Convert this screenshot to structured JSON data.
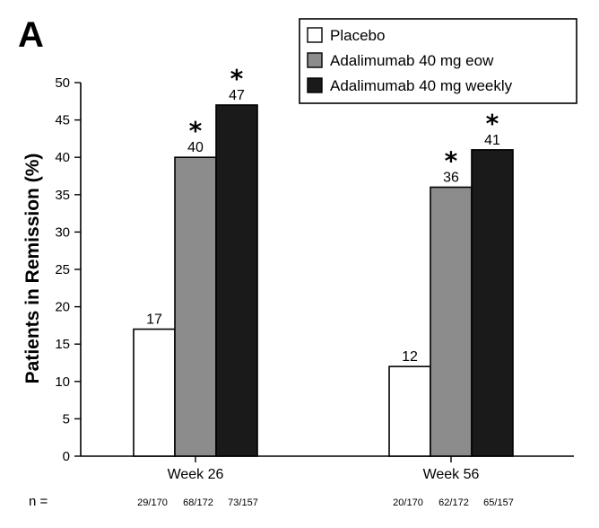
{
  "panel_label": "A",
  "n_label": "n =",
  "chart_data": {
    "type": "bar",
    "title": "",
    "xlabel": "",
    "ylabel": "Patients in Remission (%)",
    "ylim": [
      0,
      50
    ],
    "yticks": [
      "0",
      "5",
      "10",
      "15",
      "20",
      "25",
      "30",
      "35",
      "40",
      "45",
      "50"
    ],
    "categories": [
      "Week 26",
      "Week 56"
    ],
    "series": [
      {
        "name": "Placebo",
        "color": "#ffffff",
        "values": [
          17,
          12
        ],
        "labels": [
          "17",
          "12"
        ],
        "significant": [
          false,
          false
        ],
        "n": [
          "29/170",
          "20/170"
        ]
      },
      {
        "name": "Adalimumab 40 mg eow",
        "color": "#8c8c8c",
        "values": [
          40,
          36
        ],
        "labels": [
          "40",
          "36"
        ],
        "significant": [
          true,
          true
        ],
        "n": [
          "68/172",
          "62/172"
        ]
      },
      {
        "name": "Adalimumab 40 mg weekly",
        "color": "#1a1a1a",
        "values": [
          47,
          41
        ],
        "labels": [
          "47",
          "41"
        ],
        "significant": [
          true,
          true
        ],
        "n": [
          "73/157",
          "65/157"
        ]
      }
    ],
    "significance_marker": "*",
    "legend_position": "top-right",
    "grid": false
  }
}
